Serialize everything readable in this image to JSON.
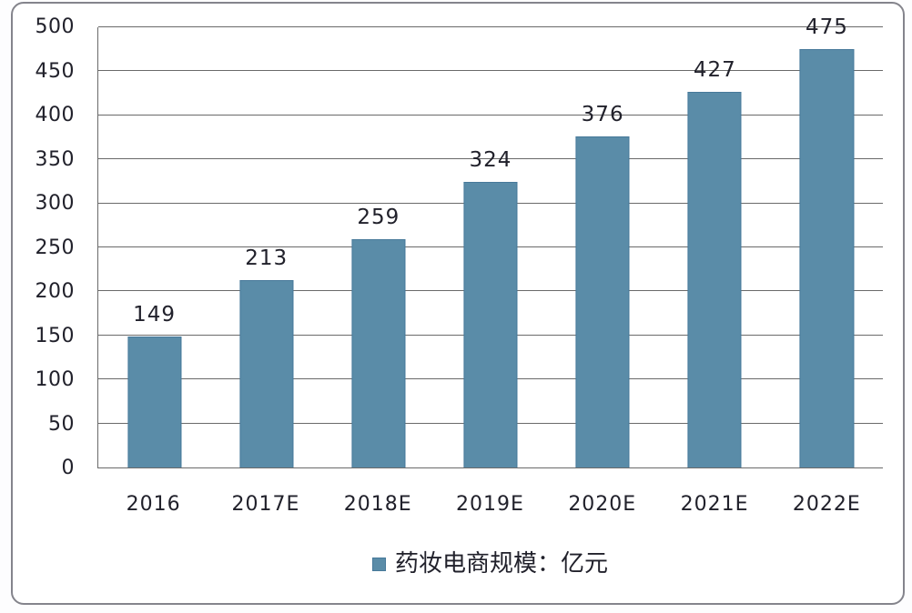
{
  "chart_data": {
    "type": "bar",
    "title": "",
    "xlabel": "",
    "ylabel": "",
    "categories": [
      "2016",
      "2017E",
      "2018E",
      "2019E",
      "2020E",
      "2021E",
      "2022E"
    ],
    "values": [
      149,
      213,
      259,
      324,
      376,
      427,
      475
    ],
    "ylim": [
      0,
      500
    ],
    "yticks": [
      0,
      50,
      100,
      150,
      200,
      250,
      300,
      350,
      400,
      450,
      500
    ],
    "grid": "horizontal",
    "data_labels_shown": true,
    "legend": {
      "label": "药妆电商规模：亿元",
      "position": "bottom"
    },
    "colors": {
      "bar_fill": "#5a8ca8",
      "bar_border": "#47799a",
      "grid_line": "#6a6a6a",
      "axis_line": "#6a6a6a",
      "text": "#21212b",
      "card_border": "#84848c"
    }
  }
}
